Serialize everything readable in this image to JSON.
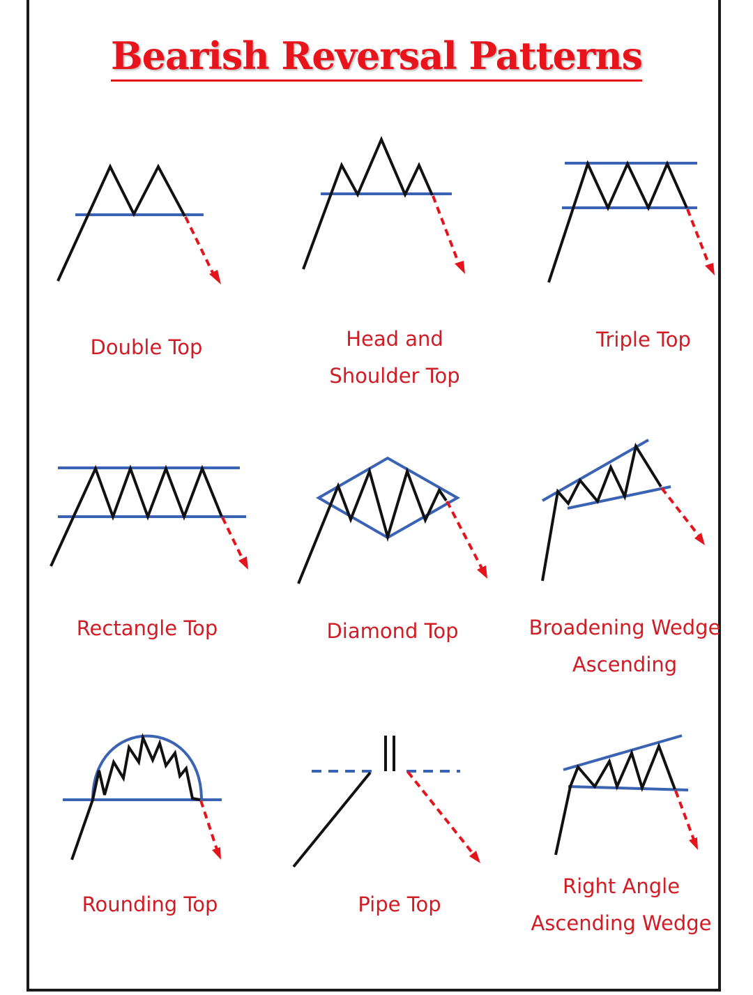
{
  "title": "Bearish Reversal Patterns",
  "colors": {
    "title": "#e8141b",
    "labels": "#d01c24",
    "price_line": "#111111",
    "support_resistance": "#3b63b3",
    "breakdown_arrow": "#e3141b"
  },
  "patterns": [
    {
      "name": "Double Top",
      "lines": [
        "Double Top"
      ]
    },
    {
      "name": "Head and Shoulder Top",
      "lines": [
        "Head and",
        "Shoulder Top"
      ]
    },
    {
      "name": "Triple Top",
      "lines": [
        "Triple Top"
      ]
    },
    {
      "name": "Rectangle Top",
      "lines": [
        "Rectangle Top"
      ]
    },
    {
      "name": "Diamond Top",
      "lines": [
        "Diamond Top"
      ]
    },
    {
      "name": "Broadening Wedge Ascending",
      "lines": [
        "Broadening Wedge",
        "Ascending"
      ]
    },
    {
      "name": "Rounding Top",
      "lines": [
        "Rounding Top"
      ]
    },
    {
      "name": "Pipe Top",
      "lines": [
        "Pipe Top"
      ]
    },
    {
      "name": "Right Angle Ascending Wedge",
      "lines": [
        "Right Angle",
        "Ascending Wedge"
      ]
    }
  ]
}
